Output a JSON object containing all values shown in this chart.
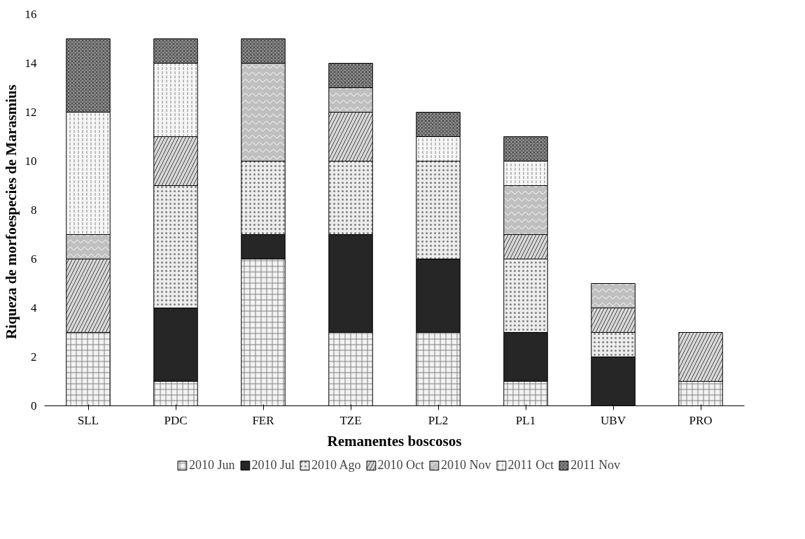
{
  "chart_data": {
    "type": "bar",
    "stacked": true,
    "xlabel": "Remanentes boscosos",
    "ylabel": "Riqueza  de morfoespecies de Marasmius",
    "categories": [
      "SLL",
      "PDC",
      "FER",
      "TZE",
      "PL2",
      "PL1",
      "UBV",
      "PRO"
    ],
    "series": [
      {
        "name": "2010 Jun",
        "color": "#f2f2f2",
        "values": [
          3,
          1,
          6,
          3,
          3,
          1,
          0,
          1
        ]
      },
      {
        "name": "2010 Jul",
        "color": "#262626",
        "values": [
          0,
          3,
          1,
          4,
          3,
          2,
          2,
          0
        ]
      },
      {
        "name": "2010 Ago",
        "color": "#ececec",
        "values": [
          0,
          5,
          3,
          3,
          4,
          3,
          1,
          0
        ]
      },
      {
        "name": "2010 Oct",
        "color": "#d9d9d9",
        "values": [
          3,
          2,
          0,
          2,
          0,
          1,
          1,
          2
        ]
      },
      {
        "name": "2010 Nov",
        "color": "#bfbfbf",
        "values": [
          1,
          0,
          4,
          1,
          0,
          2,
          1,
          0
        ]
      },
      {
        "name": "2011 Oct",
        "color": "#f6f6f6",
        "values": [
          5,
          3,
          0,
          0,
          1,
          1,
          0,
          0
        ]
      },
      {
        "name": "2011 Nov",
        "color": "#8c8c8c",
        "values": [
          3,
          1,
          1,
          1,
          1,
          1,
          0,
          0
        ]
      }
    ],
    "ylim": [
      0,
      16
    ],
    "yticks": [
      0,
      2,
      4,
      6,
      8,
      10,
      12,
      14,
      16
    ],
    "grid": false,
    "legend": "bottom"
  }
}
